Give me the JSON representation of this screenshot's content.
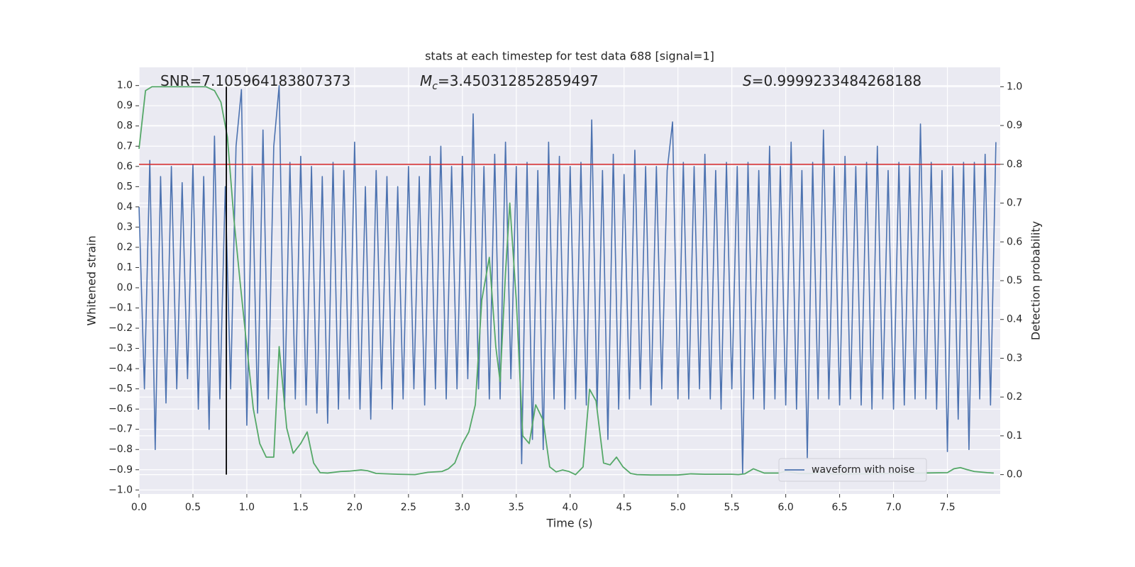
{
  "chart_data": {
    "type": "line",
    "title": "stats at each timestep for test data 688 [signal=1]",
    "xlabel": "Time (s)",
    "ylabel": "Whitened strain",
    "y2label": "Detection probability",
    "xlim": [
      0,
      7.99
    ],
    "ylim": [
      -1.02,
      1.09
    ],
    "y2lim": [
      -0.05,
      1.05
    ],
    "xticks": [
      {
        "value": 0,
        "label": "0.0"
      },
      0.5,
      {
        "value": 1,
        "label": "1.0"
      },
      1.5,
      {
        "value": 2,
        "label": "2.0"
      },
      2.5,
      {
        "value": 3,
        "label": "3.0"
      },
      3.5,
      {
        "value": 4,
        "label": "4.0"
      },
      4.5,
      {
        "value": 5,
        "label": "5.0"
      },
      5.5,
      {
        "value": 6,
        "label": "6.0"
      },
      6.5,
      {
        "value": 7,
        "label": "7.0"
      },
      7.5
    ],
    "yticks": [
      {
        "value": -1,
        "label": "−1.0"
      },
      {
        "value": -0.9,
        "label": "−0.9"
      },
      {
        "value": -0.8,
        "label": "−0.8"
      },
      {
        "value": -0.7,
        "label": "−0.7"
      },
      {
        "value": -0.6,
        "label": "−0.6"
      },
      {
        "value": -0.5,
        "label": "−0.5"
      },
      {
        "value": -0.4,
        "label": "−0.4"
      },
      {
        "value": -0.3,
        "label": "−0.3"
      },
      {
        "value": -0.2,
        "label": "−0.2"
      },
      {
        "value": -0.1,
        "label": "−0.1"
      },
      {
        "value": 0,
        "label": "0.0"
      },
      0.1,
      0.2,
      0.3,
      0.4,
      0.5,
      0.6,
      0.7,
      0.8,
      0.9,
      {
        "value": 1,
        "label": "1.0"
      }
    ],
    "y2ticks": [
      {
        "value": 0,
        "label": "0.0"
      },
      0.1,
      0.2,
      0.3,
      0.4,
      0.5,
      0.6,
      0.7,
      0.8,
      0.9,
      {
        "value": 1,
        "label": "1.0"
      }
    ],
    "grid": true,
    "legend": "lower right",
    "series": [
      {
        "name": "waveform with noise",
        "color": "#4c72b0",
        "x": [
          0,
          0.05,
          0.1,
          0.15,
          0.2,
          0.25,
          0.3,
          0.35,
          0.4,
          0.45,
          0.5,
          0.55,
          0.6,
          0.65,
          0.7,
          0.75,
          0.8,
          0.85,
          0.9,
          0.95,
          1,
          1.05,
          1.1,
          1.15,
          1.2,
          1.25,
          1.3,
          1.35,
          1.4,
          1.45,
          1.5,
          1.55,
          1.6,
          1.65,
          1.7,
          1.75,
          1.8,
          1.85,
          1.9,
          1.95,
          2,
          2.05,
          2.1,
          2.15,
          2.2,
          2.25,
          2.3,
          2.35,
          2.4,
          2.45,
          2.5,
          2.55,
          2.6,
          2.65,
          2.7,
          2.75,
          2.8,
          2.85,
          2.9,
          2.95,
          3,
          3.05,
          3.1,
          3.15,
          3.2,
          3.25,
          3.3,
          3.35,
          3.4,
          3.45,
          3.5,
          3.55,
          3.6,
          3.65,
          3.7,
          3.75,
          3.8,
          3.85,
          3.9,
          3.95,
          4,
          4.05,
          4.1,
          4.15,
          4.2,
          4.25,
          4.3,
          4.35,
          4.4,
          4.45,
          4.5,
          4.55,
          4.6,
          4.65,
          4.7,
          4.75,
          4.8,
          4.85,
          4.9,
          4.95,
          5,
          5.05,
          5.1,
          5.15,
          5.2,
          5.25,
          5.3,
          5.35,
          5.4,
          5.45,
          5.5,
          5.55,
          5.6,
          5.65,
          5.7,
          5.75,
          5.8,
          5.85,
          5.9,
          5.95,
          6,
          6.05,
          6.1,
          6.15,
          6.2,
          6.25,
          6.3,
          6.35,
          6.4,
          6.45,
          6.5,
          6.55,
          6.6,
          6.65,
          6.7,
          6.75,
          6.8,
          6.85,
          6.9,
          6.95,
          7,
          7.05,
          7.1,
          7.15,
          7.2,
          7.25,
          7.3,
          7.35,
          7.4,
          7.45,
          7.5,
          7.55,
          7.6,
          7.65,
          7.7,
          7.75,
          7.8,
          7.85,
          7.9,
          7.95
        ],
        "values": [
          0.4,
          -0.5,
          0.63,
          -0.8,
          0.55,
          -0.57,
          0.6,
          -0.5,
          0.52,
          -0.45,
          0.61,
          -0.6,
          0.55,
          -0.7,
          0.75,
          -0.55,
          0.5,
          -0.5,
          0.7,
          0.98,
          -0.68,
          0.6,
          -0.62,
          0.78,
          -0.55,
          0.7,
          1.0,
          -0.6,
          0.62,
          -0.55,
          0.65,
          -0.58,
          0.6,
          -0.62,
          0.55,
          -0.67,
          0.62,
          -0.6,
          0.58,
          -0.55,
          0.72,
          -0.6,
          0.5,
          -0.65,
          0.58,
          -0.5,
          0.55,
          -0.6,
          0.5,
          -0.55,
          0.6,
          -0.5,
          0.55,
          -0.58,
          0.65,
          -0.5,
          0.7,
          -0.55,
          0.6,
          -0.5,
          0.65,
          -0.45,
          0.86,
          -0.5,
          0.6,
          -0.55,
          0.66,
          -0.55,
          0.72,
          -0.45,
          0.6,
          -0.87,
          0.62,
          -0.75,
          0.58,
          -0.8,
          0.72,
          -0.55,
          0.65,
          -0.6,
          0.6,
          -0.55,
          0.62,
          -0.58,
          0.83,
          -0.6,
          0.58,
          -0.75,
          0.66,
          -0.6,
          0.56,
          -0.55,
          0.68,
          -0.5,
          0.6,
          -0.58,
          0.6,
          -0.5,
          0.58,
          0.82,
          -0.55,
          0.62,
          -0.55,
          0.6,
          -0.5,
          0.66,
          -0.55,
          0.58,
          -0.6,
          0.62,
          -0.5,
          0.6,
          -0.92,
          0.62,
          -0.55,
          0.58,
          -0.6,
          0.7,
          -0.55,
          0.6,
          -0.58,
          0.72,
          -0.6,
          0.58,
          -0.84,
          0.62,
          -0.55,
          0.78,
          -0.55,
          0.6,
          -0.58,
          0.65,
          -0.55,
          0.6,
          -0.58,
          0.62,
          -0.6,
          0.7,
          -0.55,
          0.58,
          -0.6,
          0.62,
          -0.58,
          0.6,
          -0.55,
          0.81,
          -0.55,
          0.62,
          -0.6,
          0.58,
          -0.81,
          0.6,
          -0.65,
          0.62,
          -0.8,
          0.62,
          -0.55,
          0.66,
          -0.58,
          0.72
        ]
      },
      {
        "color": "#55a868",
        "axis": "y2",
        "x": [
          0,
          0.06,
          0.12,
          0.25,
          0.38,
          0.5,
          0.62,
          0.7,
          0.76,
          0.82,
          0.88,
          0.94,
          1.0,
          1.06,
          1.12,
          1.18,
          1.25,
          1.3,
          1.37,
          1.43,
          1.5,
          1.56,
          1.62,
          1.68,
          1.75,
          1.87,
          1.95,
          2.06,
          2.12,
          2.2,
          2.4,
          2.56,
          2.68,
          2.81,
          2.87,
          2.93,
          3.0,
          3.06,
          3.12,
          3.18,
          3.25,
          3.31,
          3.35,
          3.4,
          3.44,
          3.5,
          3.56,
          3.62,
          3.68,
          3.75,
          3.81,
          3.87,
          3.93,
          3.99,
          4.05,
          4.12,
          4.18,
          4.24,
          4.31,
          4.37,
          4.43,
          4.49,
          4.56,
          4.62,
          4.75,
          5.0,
          5.12,
          5.25,
          5.5,
          5.56,
          5.62,
          5.7,
          5.8,
          5.94,
          6.0,
          6.12,
          6.25,
          6.31,
          6.43,
          6.75,
          7.0,
          7.25,
          7.5,
          7.56,
          7.62,
          7.68,
          7.75,
          7.87,
          7.93
        ],
        "values": [
          0.84,
          0.99,
          1.0,
          1.0,
          1.0,
          1.0,
          1.0,
          0.99,
          0.96,
          0.87,
          0.66,
          0.49,
          0.33,
          0.17,
          0.08,
          0.045,
          0.045,
          0.33,
          0.12,
          0.055,
          0.08,
          0.11,
          0.03,
          0.005,
          0.004,
          0.008,
          0.009,
          0.012,
          0.01,
          0.003,
          0.001,
          0,
          0.006,
          0.008,
          0.015,
          0.03,
          0.08,
          0.11,
          0.18,
          0.45,
          0.56,
          0.33,
          0.24,
          0.52,
          0.7,
          0.45,
          0.1,
          0.08,
          0.18,
          0.14,
          0.02,
          0.007,
          0.012,
          0.008,
          0,
          0.02,
          0.22,
          0.19,
          0.03,
          0.025,
          0.045,
          0.02,
          0.003,
          0,
          -0.001,
          -0.001,
          0.002,
          0.001,
          0.001,
          0,
          0.002,
          0.015,
          0.004,
          0.004,
          0.009,
          0.003,
          0.003,
          0.006,
          0.002,
          0.002,
          0.003,
          0.004,
          0.005,
          0.015,
          0.018,
          0.013,
          0.008,
          0.005,
          0.004
        ]
      }
    ],
    "hlines": [
      {
        "y": 0.8,
        "axis": "y2",
        "color": "#d62728"
      }
    ],
    "vlines": [
      {
        "x": 0.81,
        "ymin": 0,
        "ymax": 1,
        "axis": "y2",
        "color": "#000000"
      }
    ],
    "annotations": [
      {
        "text": "SNR=7.105964183807373"
      },
      {
        "symbol": "M",
        "subscript": "c",
        "text": "=3.450312852859497"
      },
      {
        "symbol": "S",
        "text": "=0.9999233484268188"
      }
    ]
  }
}
